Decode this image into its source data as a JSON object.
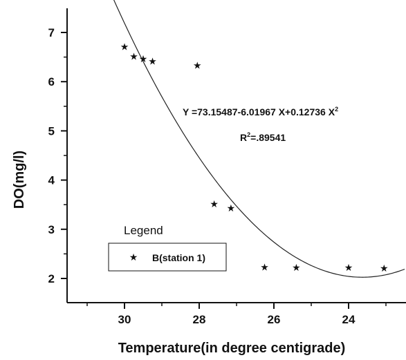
{
  "chart_data": {
    "type": "scatter",
    "title": "",
    "xlabel": "Temperature(in degree centigrade)",
    "ylabel": "DO(mg/l)",
    "x_reversed": true,
    "xlim": [
      31.5,
      22.5
    ],
    "ylim": [
      1.5,
      7.5
    ],
    "x_ticks": [
      30,
      28,
      26,
      24
    ],
    "x_tick_labels": [
      "30",
      "28",
      "26",
      "24"
    ],
    "y_ticks": [
      2,
      3,
      4,
      5,
      6,
      7
    ],
    "y_tick_labels": [
      "2",
      "3",
      "4",
      "5",
      "6",
      "7"
    ],
    "grid": false,
    "series": [
      {
        "name": "B(station 1)",
        "marker": "star",
        "color": "#111111",
        "points": [
          {
            "x": 30.0,
            "y": 6.7
          },
          {
            "x": 29.75,
            "y": 6.5
          },
          {
            "x": 29.5,
            "y": 6.45
          },
          {
            "x": 29.25,
            "y": 6.4
          },
          {
            "x": 28.05,
            "y": 6.32
          },
          {
            "x": 27.6,
            "y": 3.5
          },
          {
            "x": 27.15,
            "y": 3.42
          },
          {
            "x": 26.25,
            "y": 2.22
          },
          {
            "x": 25.4,
            "y": 2.21
          },
          {
            "x": 24.0,
            "y": 2.21
          },
          {
            "x": 23.05,
            "y": 2.2
          }
        ]
      }
    ],
    "fit": {
      "equation_text": "Y =73.15487-6.01967 X+0.12736 X",
      "equation_exponent": "2",
      "r2_prefix": "R",
      "r2_exponent": "2",
      "r2_value": "=.89541",
      "coefficients": [
        73.15487,
        -6.01967,
        0.12736
      ],
      "x_range": [
        22.5,
        31.5
      ]
    },
    "legend": {
      "title": "Legend",
      "placement": "bottom-left",
      "entries": [
        {
          "label": "B(station 1)",
          "marker": "star"
        }
      ]
    }
  }
}
